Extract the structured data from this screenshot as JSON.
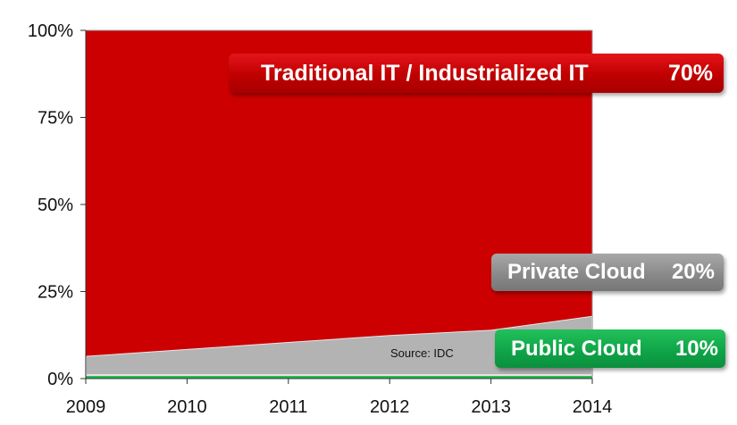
{
  "chart_data": {
    "type": "area",
    "stacked": true,
    "x": [
      2009,
      2010,
      2011,
      2012,
      2013,
      2014
    ],
    "series": [
      {
        "name": "Public Cloud",
        "color": "#22b34c",
        "values": [
          1,
          1,
          1,
          1,
          1,
          1
        ]
      },
      {
        "name": "Private Cloud",
        "color": "#b3b3b3",
        "values": [
          5.5,
          7.5,
          9.5,
          11.5,
          13.0,
          17.0
        ]
      },
      {
        "name": "Traditional IT / Industrialized IT",
        "color": "#cc0000",
        "values": [
          93.5,
          91.5,
          89.5,
          87.5,
          86.0,
          82.0
        ]
      }
    ],
    "ylim": [
      0,
      100
    ],
    "yticks": [
      "0%",
      "25%",
      "50%",
      "75%",
      "100%"
    ],
    "ytick_values": [
      0,
      25,
      50,
      75,
      100
    ],
    "xticks": [
      "2009",
      "2010",
      "2011",
      "2012",
      "2013",
      "2014"
    ],
    "callouts": [
      {
        "label": "Traditional IT / Industrialized IT",
        "value": "70%",
        "color": "#cc0000"
      },
      {
        "label": "Private Cloud",
        "value": "20%",
        "color": "#8c8c8c"
      },
      {
        "label": "Public Cloud",
        "value": "10%",
        "color": "#14a94a"
      }
    ],
    "source": "Source:  IDC",
    "grid": false
  }
}
